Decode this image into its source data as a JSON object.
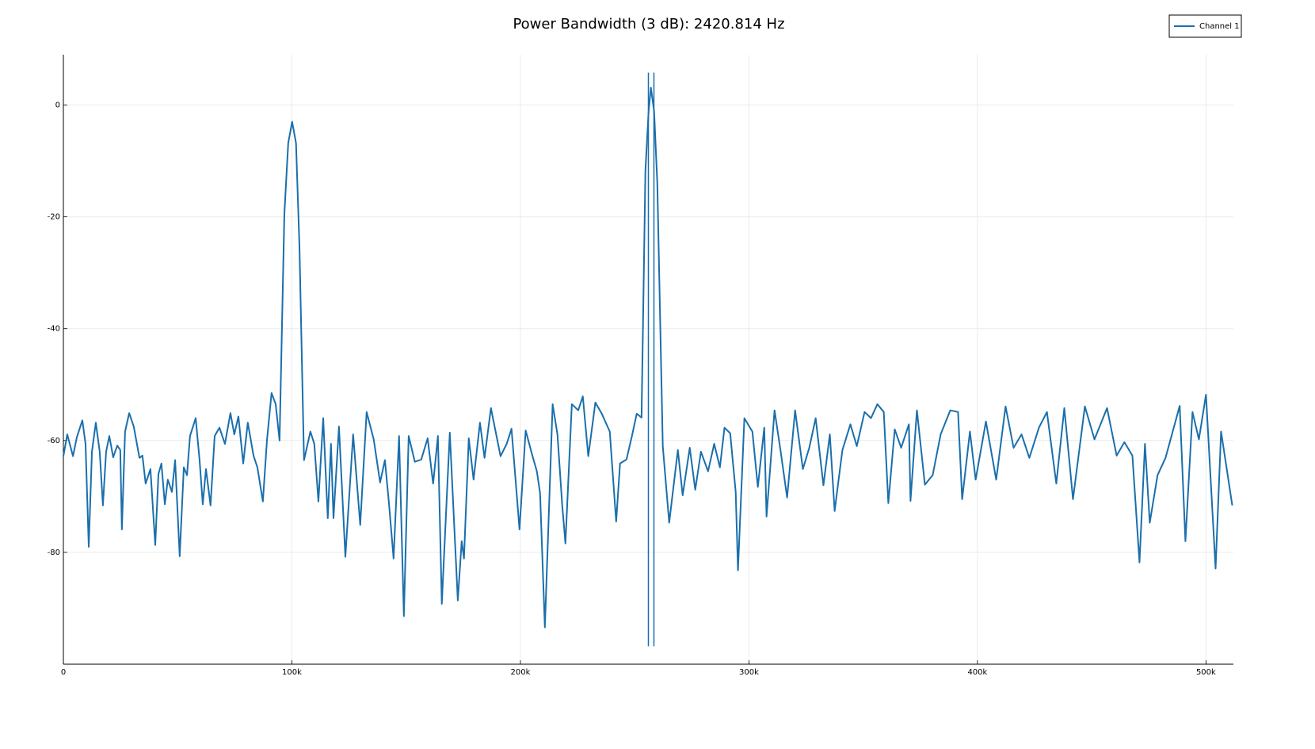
{
  "chart_data": {
    "type": "line",
    "title": "Power Bandwidth (3 dB): 2420.814 Hz",
    "x": [
      0,
      1700,
      4200,
      5900,
      8300,
      9700,
      11100,
      12500,
      14200,
      15900,
      17300,
      18700,
      20100,
      21800,
      23600,
      24900,
      25600,
      27000,
      28800,
      30800,
      33300,
      34600,
      36000,
      38100,
      40200,
      41600,
      42900,
      44400,
      45700,
      47500,
      48900,
      50900,
      52700,
      54100,
      55400,
      57900,
      59600,
      61000,
      62400,
      64400,
      66200,
      68300,
      70700,
      73100,
      74800,
      76600,
      78700,
      80700,
      83200,
      84900,
      87300,
      89100,
      91100,
      92900,
      94600,
      96700,
      98400,
      100100,
      101800,
      103300,
      105300,
      108100,
      109800,
      111600,
      113700,
      115700,
      117100,
      118200,
      120600,
      123400,
      126800,
      129900,
      132700,
      135800,
      138600,
      140700,
      142400,
      144500,
      146900,
      149000,
      151100,
      153800,
      156600,
      159400,
      161800,
      163900,
      165600,
      169100,
      172600,
      174300,
      175300,
      177400,
      179500,
      182300,
      184300,
      187100,
      191300,
      194000,
      196100,
      199600,
      202300,
      205100,
      207200,
      208600,
      210700,
      214100,
      216200,
      218300,
      219700,
      222500,
      225300,
      227300,
      229700,
      232800,
      235600,
      239100,
      241900,
      243600,
      246400,
      248800,
      250900,
      253000,
      254700,
      256100,
      257100,
      258500,
      259900,
      262300,
      265100,
      268900,
      271000,
      274100,
      276500,
      279000,
      282100,
      284800,
      287300,
      289300,
      291800,
      294200,
      295200,
      298000,
      301500,
      303900,
      306700,
      307700,
      311200,
      313900,
      316700,
      320200,
      323600,
      326400,
      329200,
      332600,
      335400,
      337500,
      340900,
      344400,
      347200,
      350600,
      353400,
      356200,
      359000,
      361000,
      363800,
      366600,
      370000,
      370700,
      373500,
      377000,
      380400,
      383900,
      388100,
      391500,
      393300,
      396700,
      399200,
      403700,
      408200,
      412300,
      415800,
      419300,
      422700,
      426900,
      430400,
      434500,
      438000,
      441800,
      447000,
      451200,
      456700,
      460900,
      464300,
      467800,
      470900,
      473300,
      475400,
      478800,
      482300,
      488500,
      491000,
      494100,
      496900,
      500000,
      504200,
      506600,
      511500
    ],
    "series": [
      {
        "name": "Channel 1",
        "color": "#1a6fac",
        "values": [
          -62.8,
          -58.9,
          -62.8,
          -59.4,
          -56.4,
          -60.6,
          -79,
          -62,
          -56.8,
          -62,
          -71.6,
          -62,
          -59.2,
          -63,
          -60.9,
          -61.7,
          -75.9,
          -58.4,
          -55.1,
          -57.5,
          -63.1,
          -62.7,
          -67.7,
          -65.1,
          -78.7,
          -66,
          -64.1,
          -71.4,
          -67,
          -69.2,
          -63.5,
          -80.7,
          -64.8,
          -66.2,
          -59.2,
          -56,
          -63.5,
          -71.4,
          -65.1,
          -71.6,
          -59.2,
          -57.7,
          -60.6,
          -55.1,
          -58.9,
          -55.7,
          -64.1,
          -56.8,
          -62.7,
          -64.8,
          -70.9,
          -59.9,
          -51.5,
          -53.5,
          -60,
          -19.5,
          -6.8,
          -3,
          -6.8,
          -25.2,
          -63.5,
          -58.4,
          -60.6,
          -70.9,
          -56,
          -73.9,
          -60.6,
          -73.9,
          -57.5,
          -80.8,
          -58.9,
          -75.1,
          -54.9,
          -59.8,
          -67.5,
          -63.5,
          -70.9,
          -81.1,
          -59.2,
          -91.4,
          -59.2,
          -63.8,
          -63.4,
          -59.6,
          -67.7,
          -59.2,
          -89.2,
          -58.6,
          -88.6,
          -78,
          -81.1,
          -59.6,
          -67,
          -56.8,
          -63.1,
          -54.2,
          -62.8,
          -60.6,
          -57.9,
          -75.9,
          -58.2,
          -62.5,
          -65.5,
          -69.4,
          -93.4,
          -53.5,
          -58.9,
          -71.6,
          -78.4,
          -53.5,
          -54.6,
          -52.1,
          -62.8,
          -53.2,
          -55.2,
          -58.4,
          -74.5,
          -64.1,
          -63.4,
          -59.2,
          -55.2,
          -55.9,
          -11.7,
          -1.1,
          3.1,
          -1.1,
          -13.9,
          -61,
          -74.7,
          -61.7,
          -69.8,
          -61.3,
          -68.8,
          -62,
          -65.5,
          -60.6,
          -64.8,
          -57.7,
          -58.7,
          -69.2,
          -83.2,
          -56,
          -58.4,
          -68.3,
          -57.7,
          -73.6,
          -54.6,
          -62,
          -70.2,
          -54.6,
          -65.1,
          -61.3,
          -56,
          -68,
          -58.9,
          -72.6,
          -61.7,
          -57.1,
          -61,
          -54.9,
          -56,
          -53.5,
          -54.9,
          -71.2,
          -58,
          -61.3,
          -57.1,
          -70.8,
          -54.6,
          -67.9,
          -66.2,
          -58.9,
          -54.6,
          -54.9,
          -70.5,
          -58.4,
          -67,
          -56.6,
          -67,
          -53.9,
          -61.3,
          -58.9,
          -63.1,
          -57.7,
          -54.9,
          -67.7,
          -54.2,
          -70.5,
          -53.9,
          -59.8,
          -54.2,
          -62.7,
          -60.3,
          -62.7,
          -81.8,
          -60.6,
          -74.7,
          -66.2,
          -63.1,
          -53.8,
          -78,
          -54.9,
          -59.8,
          -51.8,
          -82.9,
          -58.4,
          -71.6
        ]
      }
    ],
    "bandwidth_lines": [
      {
        "x": 256000,
        "y": [
          -96.8,
          5.8
        ]
      },
      {
        "x": 258421,
        "y": [
          -96.8,
          5.8
        ]
      }
    ],
    "xlim": [
      0,
      512000
    ],
    "ylim": [
      -100,
      9
    ],
    "xticks": [
      {
        "value": 0,
        "label": "0"
      },
      {
        "value": 100000,
        "label": "100k"
      },
      {
        "value": 200000,
        "label": "200k"
      },
      {
        "value": 300000,
        "label": "300k"
      },
      {
        "value": 400000,
        "label": "400k"
      },
      {
        "value": 500000,
        "label": "500k"
      }
    ],
    "yticks": [
      0,
      -20,
      -40,
      -60,
      -80
    ],
    "grid": true,
    "legend": "top-right"
  }
}
